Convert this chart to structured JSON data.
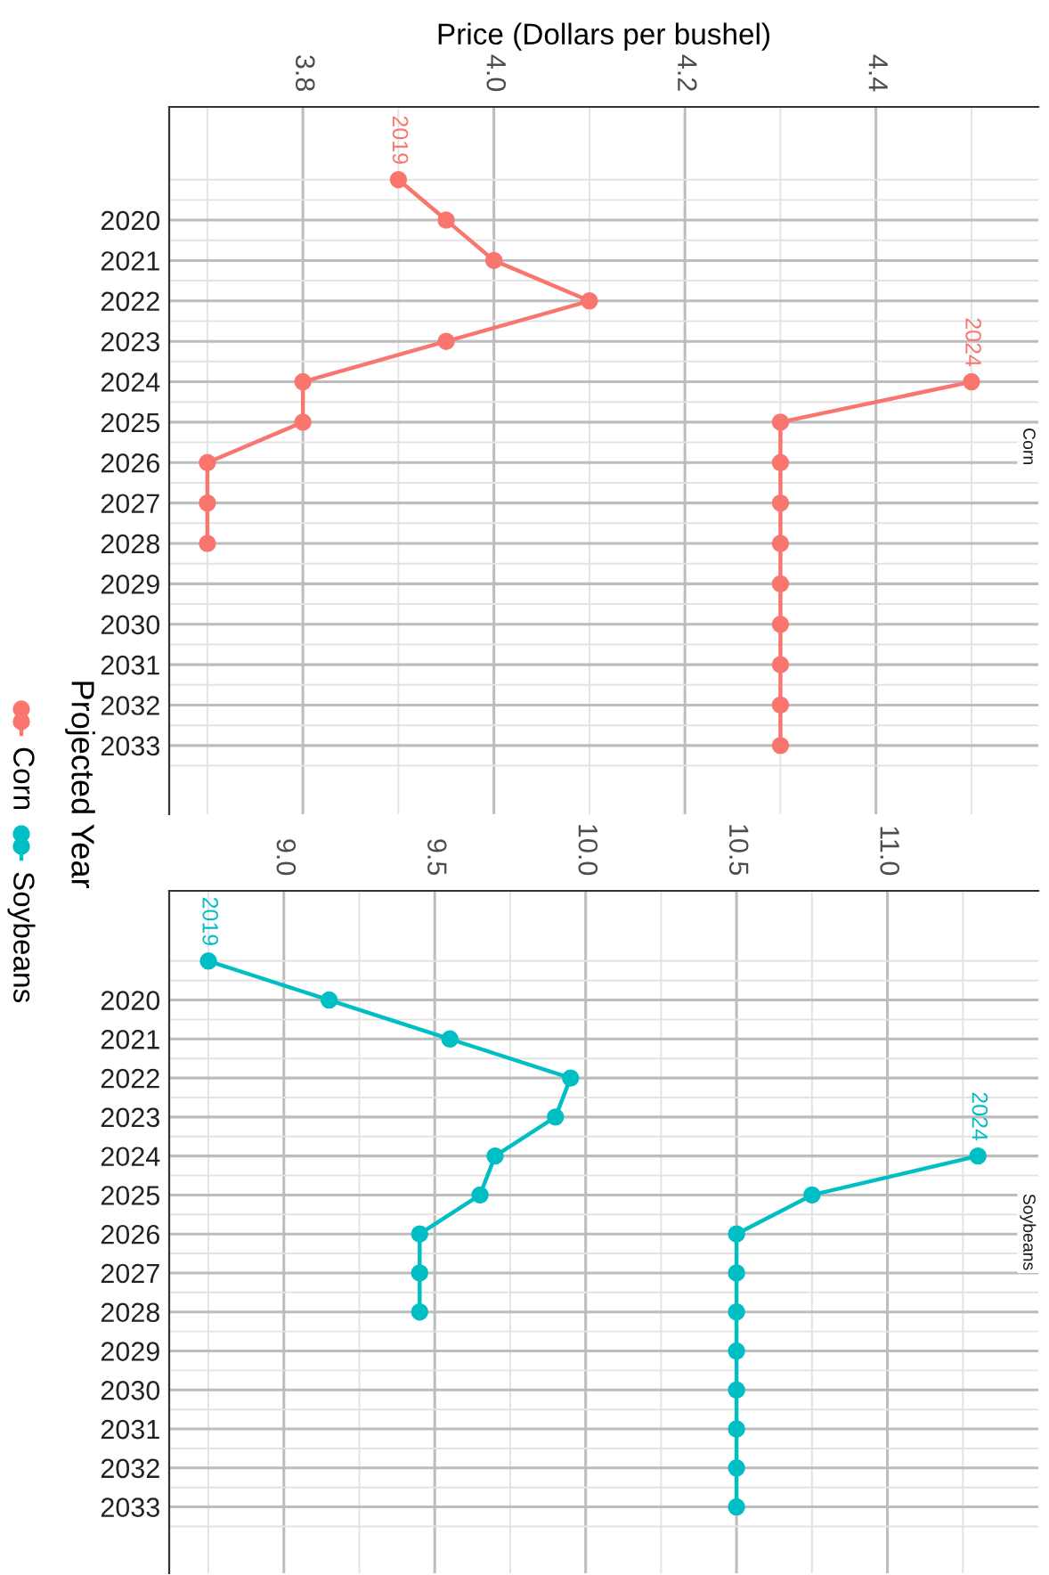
{
  "chart_data": [
    {
      "type": "line",
      "orientation": "horizontal",
      "title": "Corn",
      "xlabel": "Price (Dollars per bushel)",
      "ylabel": "Projected Year",
      "legend": "left",
      "grid": true,
      "marker": "circle",
      "line_style": "solid",
      "xlim": [
        3.66,
        4.57
      ],
      "xticks": [
        3.8,
        {
          "value": 4,
          "label": "4.0"
        },
        4.2,
        4.4
      ],
      "ylim": [
        2034.7,
        2017.2
      ],
      "yticks": [
        2020,
        2021,
        2022,
        2023,
        2024,
        2025,
        2026,
        2027,
        2028,
        2029,
        2030,
        2031,
        2032,
        2033
      ],
      "series": [
        {
          "name": "Corn",
          "color": "#f8766d",
          "x": [
            2019,
            2020,
            2021,
            2022,
            2023,
            2024,
            2025,
            2026,
            2027,
            2028
          ],
          "values": [
            3.9,
            3.95,
            4.0,
            4.1,
            3.95,
            3.8,
            3.8,
            3.7,
            3.7,
            3.7
          ]
        },
        {
          "color": "#f8766d",
          "x": [
            2024,
            2025,
            2026,
            2027,
            2028,
            2029,
            2030,
            2031,
            2032,
            2033
          ],
          "values": [
            4.5,
            4.3,
            4.3,
            4.3,
            4.3,
            4.3,
            4.3,
            4.3,
            4.3,
            4.3
          ]
        }
      ],
      "annotations": [
        {
          "text": "2019",
          "x": 3.9,
          "y": 2019
        },
        {
          "text": "2024",
          "x": 4.5,
          "y": 2024
        }
      ]
    },
    {
      "type": "line",
      "orientation": "horizontal",
      "title": "Soybeans",
      "legend": "left",
      "grid": true,
      "marker": "circle",
      "line_style": "solid",
      "xlim": [
        8.62,
        11.5
      ],
      "xticks": [
        {
          "value": 9,
          "label": "9.0"
        },
        9.5,
        {
          "value": 10,
          "label": "10.0"
        },
        10.5,
        {
          "value": 11,
          "label": "11.0"
        }
      ],
      "ylim": [
        2034.7,
        2017.2
      ],
      "yticks": [
        2020,
        2021,
        2022,
        2023,
        2024,
        2025,
        2026,
        2027,
        2028,
        2029,
        2030,
        2031,
        2032,
        2033
      ],
      "series": [
        {
          "name": "Soybeans",
          "color": "#00bfc4",
          "x": [
            2019,
            2020,
            2021,
            2022,
            2023,
            2024,
            2025,
            2026,
            2027,
            2028
          ],
          "values": [
            8.75,
            9.15,
            9.55,
            9.95,
            9.9,
            9.7,
            9.65,
            9.45,
            9.45,
            9.45
          ]
        },
        {
          "color": "#00bfc4",
          "x": [
            2024,
            2025,
            2026,
            2027,
            2028,
            2029,
            2030,
            2031,
            2032,
            2033
          ],
          "values": [
            11.3,
            10.75,
            10.5,
            10.5,
            10.5,
            10.5,
            10.5,
            10.5,
            10.5,
            10.5
          ]
        }
      ],
      "annotations": [
        {
          "text": "2019",
          "x": 8.75,
          "y": 2019
        },
        {
          "text": "2024",
          "x": 11.3,
          "y": 2024
        }
      ]
    }
  ]
}
